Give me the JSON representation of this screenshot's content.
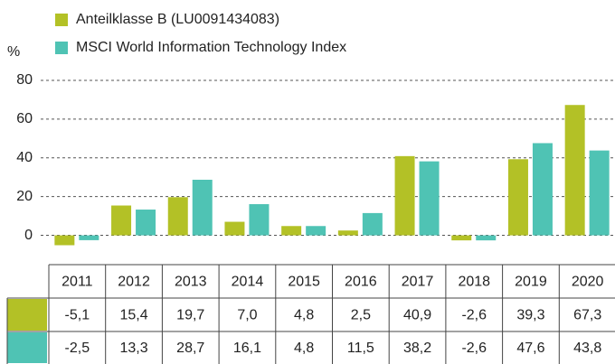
{
  "chart_data": {
    "type": "bar",
    "y_axis_label": "%",
    "categories": [
      "2011",
      "2012",
      "2013",
      "2014",
      "2015",
      "2016",
      "2017",
      "2018",
      "2019",
      "2020"
    ],
    "series": [
      {
        "name": "Anteilklasse B (LU0091434083)",
        "color": "#b3c126",
        "values": [
          -5.1,
          15.4,
          19.7,
          7.0,
          4.8,
          2.5,
          40.9,
          -2.6,
          39.3,
          67.3
        ],
        "value_labels": [
          "-5,1",
          "15,4",
          "19,7",
          "7,0",
          "4,8",
          "2,5",
          "40,9",
          "-2,6",
          "39,3",
          "67,3"
        ]
      },
      {
        "name": "MSCI World Information Technology Index",
        "color": "#4fc3b4",
        "values": [
          -2.5,
          13.3,
          28.7,
          16.1,
          4.8,
          11.5,
          38.2,
          -2.6,
          47.6,
          43.8
        ],
        "value_labels": [
          "-2,5",
          "13,3",
          "28,7",
          "16,1",
          "4,8",
          "11,5",
          "38,2",
          "-2,6",
          "47,6",
          "43,8"
        ]
      }
    ],
    "ylim": [
      -10,
      80
    ],
    "yticks": [
      0,
      20,
      40,
      60,
      80
    ],
    "grid": true
  }
}
